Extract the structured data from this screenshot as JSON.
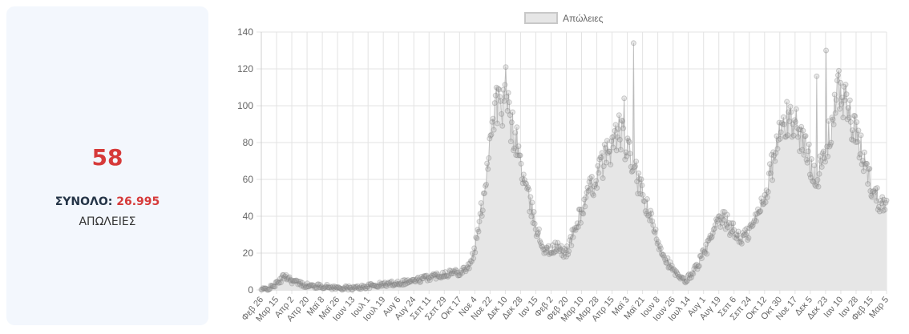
{
  "card": {
    "value": "58",
    "total_label": "ΣΥΝΟΛΟ:",
    "total_value": "26.995",
    "subtitle": "ΑΠΩΛΕΙΕΣ"
  },
  "chart_data": {
    "type": "area",
    "legend": [
      "Απώλειες"
    ],
    "series": [
      {
        "name": "Απώλειες",
        "color": "#9a9a9a",
        "fill": "#e6e6e6"
      }
    ],
    "ylim": [
      0,
      140
    ],
    "yticks": [
      0,
      20,
      40,
      60,
      80,
      100,
      120,
      140
    ],
    "grid": true,
    "legend_position": "top",
    "xticks": [
      "Φεβ 26",
      "Μαρ 15",
      "Απρ 2",
      "Απρ 20",
      "Μαϊ 8",
      "Μαϊ 26",
      "Ιουν 13",
      "Ιουλ 1",
      "Ιουλ 19",
      "Αυγ 6",
      "Αυγ 24",
      "Σεπ 11",
      "Σεπ 29",
      "Οκτ 17",
      "Νοε 4",
      "Νοε 22",
      "Δεκ 10",
      "Δεκ 28",
      "Ιαν 15",
      "Φεβ 2",
      "Φεβ 20",
      "Μαρ 10",
      "Μαρ 28",
      "Απρ 15",
      "Μαϊ 3",
      "Μαϊ 21",
      "Ιουν 8",
      "Ιουν 26",
      "Ιουλ 14",
      "Αυγ 1",
      "Αυγ 19",
      "Σεπ 6",
      "Σεπ 24",
      "Οκτ 12",
      "Οκτ 30",
      "Νοε 17",
      "Δεκ 5",
      "Δεκ 23",
      "Ιαν 10",
      "Ιαν 28",
      "Φεβ 15",
      "Μαρ 5"
    ],
    "anchors": [
      [
        0,
        0
      ],
      [
        10,
        1
      ],
      [
        20,
        4
      ],
      [
        28,
        8
      ],
      [
        36,
        5
      ],
      [
        48,
        3
      ],
      [
        60,
        2
      ],
      [
        72,
        2
      ],
      [
        90,
        1
      ],
      [
        108,
        1
      ],
      [
        126,
        2
      ],
      [
        144,
        3
      ],
      [
        162,
        4
      ],
      [
        180,
        5
      ],
      [
        198,
        7
      ],
      [
        216,
        9
      ],
      [
        234,
        10
      ],
      [
        246,
        14
      ],
      [
        252,
        25
      ],
      [
        258,
        42
      ],
      [
        264,
        62
      ],
      [
        270,
        90
      ],
      [
        276,
        102
      ],
      [
        282,
        98
      ],
      [
        288,
        101
      ],
      [
        294,
        88
      ],
      [
        300,
        80
      ],
      [
        306,
        65
      ],
      [
        312,
        52
      ],
      [
        318,
        42
      ],
      [
        324,
        32
      ],
      [
        330,
        24
      ],
      [
        336,
        21
      ],
      [
        342,
        22
      ],
      [
        348,
        23
      ],
      [
        354,
        20
      ],
      [
        360,
        22
      ],
      [
        366,
        30
      ],
      [
        372,
        38
      ],
      [
        378,
        45
      ],
      [
        384,
        52
      ],
      [
        390,
        58
      ],
      [
        396,
        64
      ],
      [
        402,
        70
      ],
      [
        408,
        76
      ],
      [
        414,
        80
      ],
      [
        420,
        87
      ],
      [
        426,
        80
      ],
      [
        432,
        72
      ],
      [
        438,
        65
      ],
      [
        444,
        56
      ],
      [
        450,
        48
      ],
      [
        456,
        40
      ],
      [
        462,
        31
      ],
      [
        468,
        24
      ],
      [
        474,
        18
      ],
      [
        480,
        13
      ],
      [
        486,
        9
      ],
      [
        492,
        6
      ],
      [
        498,
        5
      ],
      [
        504,
        8
      ],
      [
        510,
        12
      ],
      [
        516,
        17
      ],
      [
        522,
        22
      ],
      [
        528,
        28
      ],
      [
        534,
        34
      ],
      [
        540,
        38
      ],
      [
        546,
        37
      ],
      [
        552,
        33
      ],
      [
        558,
        30
      ],
      [
        564,
        28
      ],
      [
        570,
        30
      ],
      [
        576,
        34
      ],
      [
        582,
        40
      ],
      [
        588,
        48
      ],
      [
        594,
        56
      ],
      [
        600,
        68
      ],
      [
        606,
        80
      ],
      [
        612,
        88
      ],
      [
        618,
        92
      ],
      [
        624,
        93
      ],
      [
        630,
        88
      ],
      [
        636,
        80
      ],
      [
        642,
        72
      ],
      [
        648,
        66
      ],
      [
        654,
        62
      ],
      [
        660,
        70
      ],
      [
        666,
        82
      ],
      [
        672,
        96
      ],
      [
        678,
        108
      ],
      [
        684,
        105
      ],
      [
        690,
        95
      ],
      [
        696,
        86
      ],
      [
        702,
        78
      ],
      [
        708,
        70
      ],
      [
        714,
        60
      ],
      [
        720,
        52
      ],
      [
        726,
        48
      ],
      [
        732,
        50
      ]
    ],
    "spikes": [
      [
        287,
        121
      ],
      [
        426,
        104
      ],
      [
        437,
        134
      ],
      [
        663,
        130
      ],
      [
        652,
        116
      ],
      [
        678,
        119
      ]
    ],
    "days": 735
  }
}
